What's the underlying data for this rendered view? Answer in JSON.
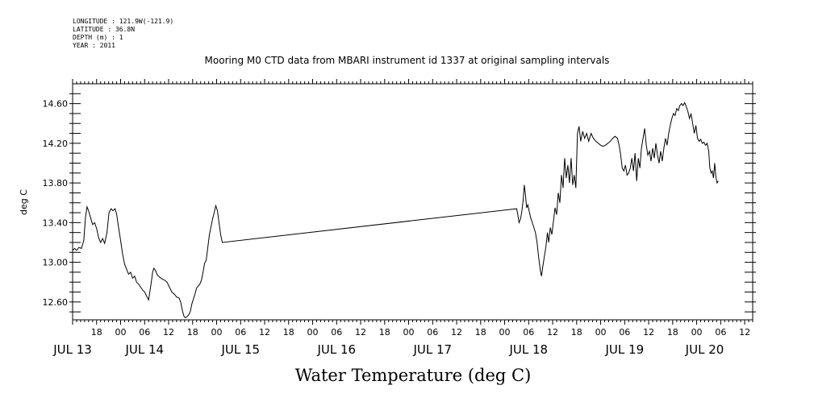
{
  "header": {
    "longitude": "LONGITUDE : 121.9W(-121.9)",
    "latitude": "LATITUDE : 36.8N",
    "depth": "DEPTH (m) : 1",
    "year": "YEAR : 2011"
  },
  "chart_data": {
    "type": "line",
    "title": "Mooring M0 CTD data from MBARI instrument id 1337 at original sampling intervals",
    "xlabel": "Water Temperature (deg C)",
    "ylabel": "deg C",
    "xlim_hours_from_jul13_00": [
      12,
      182
    ],
    "ylim": [
      12.42,
      14.8
    ],
    "grid": false,
    "y_ticks": [
      "12.60",
      "13.00",
      "13.40",
      "13.80",
      "14.20",
      "14.60"
    ],
    "y_tick_values": [
      12.6,
      13.0,
      13.4,
      13.8,
      14.2,
      14.6
    ],
    "x_hour_tick_labels": [
      {
        "h": 18,
        "label": "18"
      },
      {
        "h": 24,
        "label": "00"
      },
      {
        "h": 30,
        "label": "06"
      },
      {
        "h": 36,
        "label": "12"
      },
      {
        "h": 42,
        "label": "18"
      },
      {
        "h": 48,
        "label": "00"
      },
      {
        "h": 54,
        "label": "06"
      },
      {
        "h": 60,
        "label": "12"
      },
      {
        "h": 66,
        "label": "18"
      },
      {
        "h": 72,
        "label": "00"
      },
      {
        "h": 78,
        "label": "06"
      },
      {
        "h": 84,
        "label": "12"
      },
      {
        "h": 90,
        "label": "18"
      },
      {
        "h": 96,
        "label": "00"
      },
      {
        "h": 102,
        "label": "06"
      },
      {
        "h": 108,
        "label": "12"
      },
      {
        "h": 114,
        "label": "18"
      },
      {
        "h": 120,
        "label": "00"
      },
      {
        "h": 126,
        "label": "06"
      },
      {
        "h": 132,
        "label": "12"
      },
      {
        "h": 138,
        "label": "18"
      },
      {
        "h": 144,
        "label": "00"
      },
      {
        "h": 150,
        "label": "06"
      },
      {
        "h": 156,
        "label": "12"
      },
      {
        "h": 162,
        "label": "18"
      },
      {
        "h": 168,
        "label": "00"
      },
      {
        "h": 174,
        "label": "06"
      },
      {
        "h": 180,
        "label": "12"
      }
    ],
    "x_day_labels": [
      {
        "h": 12,
        "label": "JUL 13"
      },
      {
        "h": 30,
        "label": "JUL 14"
      },
      {
        "h": 54,
        "label": "JUL 15"
      },
      {
        "h": 78,
        "label": "JUL 16"
      },
      {
        "h": 102,
        "label": "JUL 17"
      },
      {
        "h": 126,
        "label": "JUL 18"
      },
      {
        "h": 150,
        "label": "JUL 19"
      },
      {
        "h": 170,
        "label": "JUL 20"
      }
    ],
    "series": [
      {
        "points": [
          [
            12.0,
            13.12
          ],
          [
            12.5,
            13.14
          ],
          [
            13.0,
            13.12
          ],
          [
            13.6,
            13.15
          ],
          [
            14.2,
            13.14
          ],
          [
            14.8,
            13.22
          ],
          [
            15.2,
            13.45
          ],
          [
            15.6,
            13.56
          ],
          [
            16.0,
            13.52
          ],
          [
            16.5,
            13.45
          ],
          [
            17.0,
            13.38
          ],
          [
            17.5,
            13.4
          ],
          [
            18.0,
            13.34
          ],
          [
            18.5,
            13.25
          ],
          [
            19.0,
            13.2
          ],
          [
            19.5,
            13.24
          ],
          [
            20.0,
            13.19
          ],
          [
            20.6,
            13.3
          ],
          [
            21.1,
            13.5
          ],
          [
            21.6,
            13.54
          ],
          [
            22.1,
            13.52
          ],
          [
            22.6,
            13.54
          ],
          [
            23.0,
            13.49
          ],
          [
            23.5,
            13.35
          ],
          [
            24.0,
            13.22
          ],
          [
            24.5,
            13.08
          ],
          [
            25.0,
            12.98
          ],
          [
            25.5,
            12.93
          ],
          [
            26.0,
            12.88
          ],
          [
            26.5,
            12.9
          ],
          [
            27.0,
            12.84
          ],
          [
            27.5,
            12.86
          ],
          [
            28.0,
            12.8
          ],
          [
            28.5,
            12.78
          ],
          [
            29.0,
            12.75
          ],
          [
            29.5,
            12.72
          ],
          [
            30.0,
            12.7
          ],
          [
            30.5,
            12.66
          ],
          [
            31.0,
            12.62
          ],
          [
            31.3,
            12.7
          ],
          [
            31.6,
            12.78
          ],
          [
            32.0,
            12.9
          ],
          [
            32.3,
            12.94
          ],
          [
            32.7,
            12.92
          ],
          [
            33.2,
            12.87
          ],
          [
            33.8,
            12.85
          ],
          [
            34.4,
            12.83
          ],
          [
            35.0,
            12.82
          ],
          [
            35.6,
            12.8
          ],
          [
            36.2,
            12.75
          ],
          [
            36.8,
            12.7
          ],
          [
            37.4,
            12.68
          ],
          [
            38.0,
            12.65
          ],
          [
            38.6,
            12.64
          ],
          [
            39.0,
            12.6
          ],
          [
            39.4,
            12.52
          ],
          [
            39.8,
            12.46
          ],
          [
            40.2,
            12.44
          ],
          [
            40.6,
            12.45
          ],
          [
            41.0,
            12.47
          ],
          [
            41.4,
            12.5
          ],
          [
            41.8,
            12.58
          ],
          [
            42.2,
            12.63
          ],
          [
            42.6,
            12.68
          ],
          [
            43.0,
            12.74
          ],
          [
            43.4,
            12.76
          ],
          [
            43.8,
            12.78
          ],
          [
            44.2,
            12.82
          ],
          [
            44.6,
            12.9
          ],
          [
            45.0,
            12.99
          ],
          [
            45.4,
            13.02
          ],
          [
            45.8,
            13.15
          ],
          [
            46.2,
            13.28
          ],
          [
            46.6,
            13.36
          ],
          [
            47.0,
            13.44
          ],
          [
            47.4,
            13.5
          ],
          [
            47.8,
            13.57
          ],
          [
            48.2,
            13.52
          ],
          [
            48.6,
            13.4
          ],
          [
            49.0,
            13.28
          ],
          [
            49.4,
            13.2
          ],
          [
            123.0,
            13.54
          ],
          [
            123.3,
            13.48
          ],
          [
            123.6,
            13.4
          ],
          [
            124.0,
            13.44
          ],
          [
            124.3,
            13.52
          ],
          [
            124.6,
            13.62
          ],
          [
            124.9,
            13.78
          ],
          [
            125.2,
            13.68
          ],
          [
            125.5,
            13.55
          ],
          [
            125.8,
            13.58
          ],
          [
            126.1,
            13.52
          ],
          [
            126.5,
            13.45
          ],
          [
            126.9,
            13.4
          ],
          [
            127.3,
            13.35
          ],
          [
            127.7,
            13.3
          ],
          [
            128.1,
            13.2
          ],
          [
            128.5,
            13.05
          ],
          [
            128.9,
            12.92
          ],
          [
            129.2,
            12.86
          ],
          [
            129.5,
            12.95
          ],
          [
            129.9,
            13.05
          ],
          [
            130.3,
            13.15
          ],
          [
            130.7,
            13.3
          ],
          [
            131.0,
            13.2
          ],
          [
            131.4,
            13.35
          ],
          [
            131.8,
            13.28
          ],
          [
            132.2,
            13.42
          ],
          [
            132.6,
            13.55
          ],
          [
            133.0,
            13.48
          ],
          [
            133.4,
            13.7
          ],
          [
            133.8,
            13.6
          ],
          [
            134.2,
            13.88
          ],
          [
            134.6,
            13.75
          ],
          [
            135.0,
            14.05
          ],
          [
            135.4,
            13.85
          ],
          [
            135.8,
            13.98
          ],
          [
            136.2,
            13.8
          ],
          [
            136.6,
            14.05
          ],
          [
            137.0,
            13.78
          ],
          [
            137.4,
            13.88
          ],
          [
            137.8,
            13.75
          ],
          [
            138.2,
            14.3
          ],
          [
            138.6,
            14.37
          ],
          [
            139.0,
            14.22
          ],
          [
            139.5,
            14.32
          ],
          [
            140.0,
            14.25
          ],
          [
            140.5,
            14.3
          ],
          [
            141.0,
            14.22
          ],
          [
            141.6,
            14.3
          ],
          [
            142.2,
            14.25
          ],
          [
            142.8,
            14.22
          ],
          [
            143.4,
            14.2
          ],
          [
            144.0,
            14.18
          ],
          [
            144.6,
            14.17
          ],
          [
            145.2,
            14.18
          ],
          [
            145.8,
            14.2
          ],
          [
            146.4,
            14.22
          ],
          [
            147.0,
            14.25
          ],
          [
            147.6,
            14.27
          ],
          [
            148.2,
            14.25
          ],
          [
            148.6,
            14.18
          ],
          [
            149.0,
            14.08
          ],
          [
            149.4,
            13.95
          ],
          [
            149.8,
            13.92
          ],
          [
            150.2,
            13.98
          ],
          [
            150.6,
            13.88
          ],
          [
            151.0,
            13.9
          ],
          [
            151.4,
            13.95
          ],
          [
            151.8,
            14.05
          ],
          [
            152.2,
            13.92
          ],
          [
            152.6,
            14.1
          ],
          [
            153.0,
            13.82
          ],
          [
            153.4,
            14.05
          ],
          [
            153.8,
            13.95
          ],
          [
            154.2,
            14.15
          ],
          [
            154.6,
            14.25
          ],
          [
            155.0,
            14.35
          ],
          [
            155.4,
            14.18
          ],
          [
            155.8,
            14.08
          ],
          [
            156.2,
            14.12
          ],
          [
            156.6,
            14.02
          ],
          [
            157.0,
            14.15
          ],
          [
            157.4,
            14.05
          ],
          [
            157.8,
            14.2
          ],
          [
            158.2,
            14.08
          ],
          [
            158.6,
            14.0
          ],
          [
            159.0,
            14.12
          ],
          [
            159.4,
            14.02
          ],
          [
            159.8,
            14.15
          ],
          [
            160.2,
            14.25
          ],
          [
            160.6,
            14.18
          ],
          [
            161.0,
            14.3
          ],
          [
            161.4,
            14.38
          ],
          [
            161.8,
            14.45
          ],
          [
            162.2,
            14.5
          ],
          [
            162.6,
            14.48
          ],
          [
            163.0,
            14.55
          ],
          [
            163.4,
            14.53
          ],
          [
            163.8,
            14.58
          ],
          [
            164.2,
            14.6
          ],
          [
            164.6,
            14.58
          ],
          [
            165.0,
            14.61
          ],
          [
            165.4,
            14.57
          ],
          [
            165.8,
            14.52
          ],
          [
            166.2,
            14.45
          ],
          [
            166.6,
            14.5
          ],
          [
            167.0,
            14.4
          ],
          [
            167.4,
            14.3
          ],
          [
            167.8,
            14.38
          ],
          [
            168.2,
            14.25
          ],
          [
            168.6,
            14.22
          ],
          [
            169.0,
            14.24
          ],
          [
            169.4,
            14.2
          ],
          [
            169.8,
            14.21
          ],
          [
            170.2,
            14.18
          ],
          [
            170.6,
            14.2
          ],
          [
            171.0,
            14.12
          ],
          [
            171.3,
            13.95
          ],
          [
            171.6,
            13.9
          ],
          [
            171.9,
            13.92
          ],
          [
            172.2,
            13.85
          ],
          [
            172.5,
            14.0
          ],
          [
            172.8,
            13.86
          ],
          [
            173.1,
            13.8
          ],
          [
            173.4,
            13.82
          ]
        ]
      }
    ]
  }
}
